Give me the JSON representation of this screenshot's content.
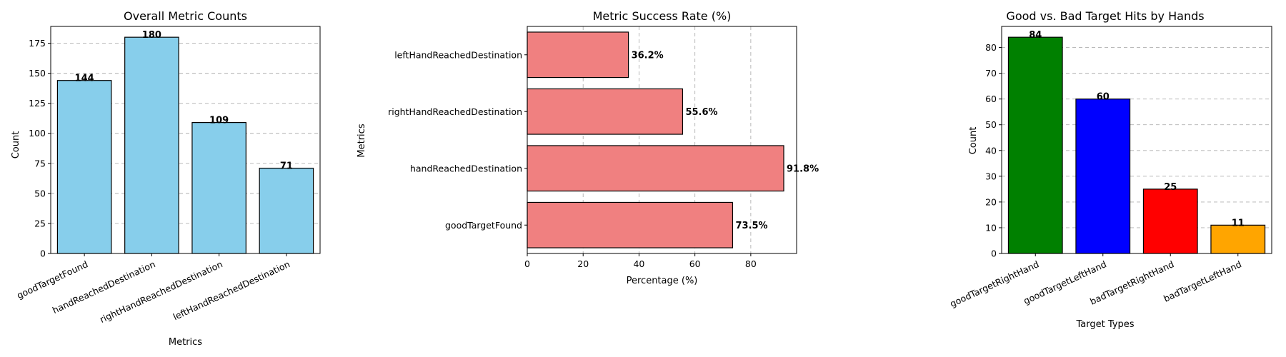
{
  "chart_data": [
    {
      "type": "bar",
      "orientation": "vertical",
      "title": "Overall Metric Counts",
      "xlabel": "Metrics",
      "ylabel": "Count",
      "categories": [
        "goodTargetFound",
        "handReachedDestination",
        "rightHandReachedDestination",
        "leftHandReachedDestination"
      ],
      "values": [
        144,
        180,
        109,
        71
      ],
      "data_labels": [
        "144",
        "180",
        "109",
        "71"
      ],
      "colors": [
        "#87ceeb",
        "#87ceeb",
        "#87ceeb",
        "#87ceeb"
      ],
      "ylim": [
        0,
        189
      ],
      "yticks": [
        0,
        25,
        50,
        75,
        100,
        125,
        150,
        175
      ],
      "ytick_labels": [
        "0",
        "25",
        "50",
        "75",
        "100",
        "125",
        "150",
        "175"
      ],
      "grid": "y",
      "tick_rotation": 25
    },
    {
      "type": "bar",
      "orientation": "horizontal",
      "title": "Metric Success Rate (%)",
      "xlabel": "Percentage (%)",
      "ylabel": "Metrics",
      "categories": [
        "goodTargetFound",
        "handReachedDestination",
        "rightHandReachedDestination",
        "leftHandReachedDestination"
      ],
      "values": [
        73.5,
        91.8,
        55.6,
        36.2
      ],
      "data_labels": [
        "73.5%",
        "91.8%",
        "55.6%",
        "36.2%"
      ],
      "colors": [
        "#f08080",
        "#f08080",
        "#f08080",
        "#f08080"
      ],
      "xlim": [
        0,
        96.4
      ],
      "xticks": [
        0,
        20,
        40,
        60,
        80
      ],
      "xtick_labels": [
        "0",
        "20",
        "40",
        "60",
        "80"
      ],
      "grid": "x"
    },
    {
      "type": "bar",
      "orientation": "vertical",
      "title": "Good vs. Bad Target Hits by Hands",
      "xlabel": "Target Types",
      "ylabel": "Count",
      "categories": [
        "goodTargetRightHand",
        "goodTargetLeftHand",
        "badTargetRightHand",
        "badTargetLeftHand"
      ],
      "values": [
        84,
        60,
        25,
        11
      ],
      "data_labels": [
        "84",
        "60",
        "25",
        "11"
      ],
      "colors": [
        "#008000",
        "#0000ff",
        "#ff0000",
        "#ffa500"
      ],
      "ylim": [
        0,
        88.2
      ],
      "yticks": [
        0,
        10,
        20,
        30,
        40,
        50,
        60,
        70,
        80
      ],
      "ytick_labels": [
        "0",
        "10",
        "20",
        "30",
        "40",
        "50",
        "60",
        "70",
        "80"
      ],
      "grid": "y",
      "tick_rotation": 25
    }
  ]
}
